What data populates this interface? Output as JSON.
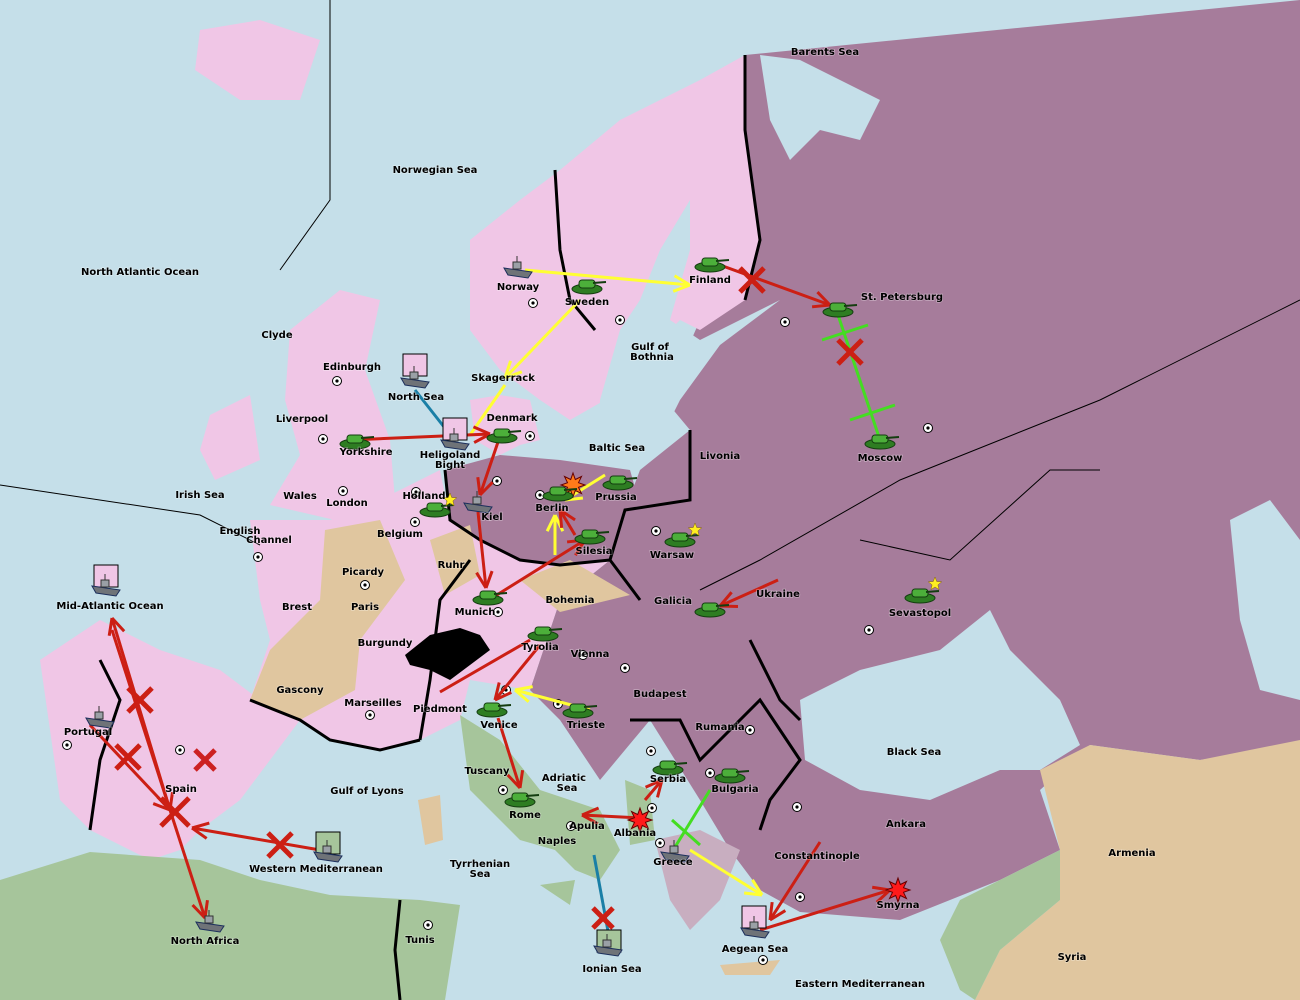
{
  "colors": {
    "sea": "#c5dfe9",
    "england_france_germany": "#f0c6e6",
    "russia_austria_turkey": "#a67c9b",
    "neutral": "#e0c69f",
    "italy_africa": "#a6c59b",
    "attack": "#cc1f14",
    "support": "#ffff33",
    "convoy": "#1a7fa6",
    "hold_support": "#44dd22"
  },
  "provinces": [
    "Barents Sea",
    "Norwegian Sea",
    "North Atlantic Ocean",
    "Norway",
    "Sweden",
    "Finland",
    "St. Petersburg",
    "Gulf of",
    "Bothnia",
    "Clyde",
    "Edinburgh",
    "North Sea",
    "Skagerrack",
    "Liverpool",
    "Denmark",
    "Baltic Sea",
    "Livonia",
    "Moscow",
    "Yorkshire",
    "Heligoland",
    "Bight",
    "Irish Sea",
    "Wales",
    "London",
    "Holland",
    "Kiel",
    "Berlin",
    "Prussia",
    "English",
    "Channel",
    "Belgium",
    "Warsaw",
    "Silesia",
    "Picardy",
    "Ruhr",
    "Ukraine",
    "Sevastopol",
    "Galicia",
    "Brest",
    "Paris",
    "Bohemia",
    "Munich",
    "Mid-Atlantic Ocean",
    "Burgundy",
    "Tyrolia",
    "Vienna",
    "Gascony",
    "Budapest",
    "Marseilles",
    "Piedmont",
    "Venice",
    "Trieste",
    "Rumania",
    "Portugal",
    "Black Sea",
    "Tuscany",
    "Adriatic",
    "Sea",
    "Serbia",
    "Bulgaria",
    "Spain",
    "Gulf of Lyons",
    "Rome",
    "Apulia",
    "Albania",
    "Ankara",
    "Armenia",
    "Naples",
    "Constantinople",
    "Greece",
    "Western Mediterranean",
    "Tyrrhenian",
    "Sea",
    "Smyrna",
    "Tunis",
    "North Africa",
    "Aegean Sea",
    "Syria",
    "Ionian Sea",
    "Eastern Mediterranean"
  ],
  "units": {
    "armies": [
      "Finland",
      "St. Petersburg",
      "Sweden",
      "Moscow",
      "Denmark",
      "Yorkshire",
      "Holland",
      "Berlin",
      "Prussia",
      "Warsaw",
      "Silesia",
      "Galicia",
      "Sevastopol",
      "Munich",
      "Tyrolia",
      "Venice",
      "Trieste",
      "Serbia",
      "Bulgaria",
      "Rome"
    ],
    "fleets": [
      "Norway",
      "North Sea",
      "Heligoland Bight",
      "Kiel",
      "Mid-Atlantic Ocean",
      "Portugal",
      "North Africa",
      "Western Mediterranean",
      "Ionian Sea",
      "Aegean Sea",
      "Greece"
    ],
    "icons": {
      "army": "tank-icon",
      "fleet": "ship-icon",
      "failed": "x-mark-icon",
      "dislodged": "explosion-icon",
      "build": "star-icon"
    }
  }
}
